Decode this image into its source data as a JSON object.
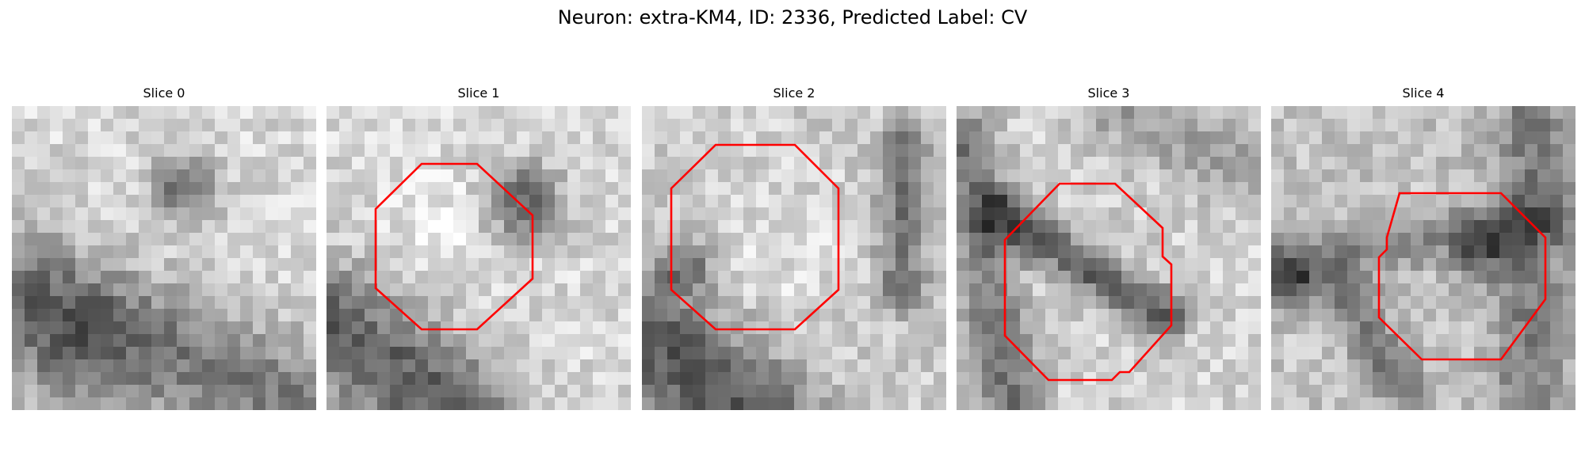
{
  "figure": {
    "title": "Neuron: extra-KM4, ID: 2336, Predicted Label: CV",
    "contour_color": "#ff0000",
    "colormap": "grayscale"
  },
  "slices": [
    {
      "title": "Slice 0",
      "has_contour": false
    },
    {
      "title": "Slice 1",
      "has_contour": true
    },
    {
      "title": "Slice 2",
      "has_contour": true
    },
    {
      "title": "Slice 3",
      "has_contour": true
    },
    {
      "title": "Slice 4",
      "has_contour": true
    }
  ]
}
